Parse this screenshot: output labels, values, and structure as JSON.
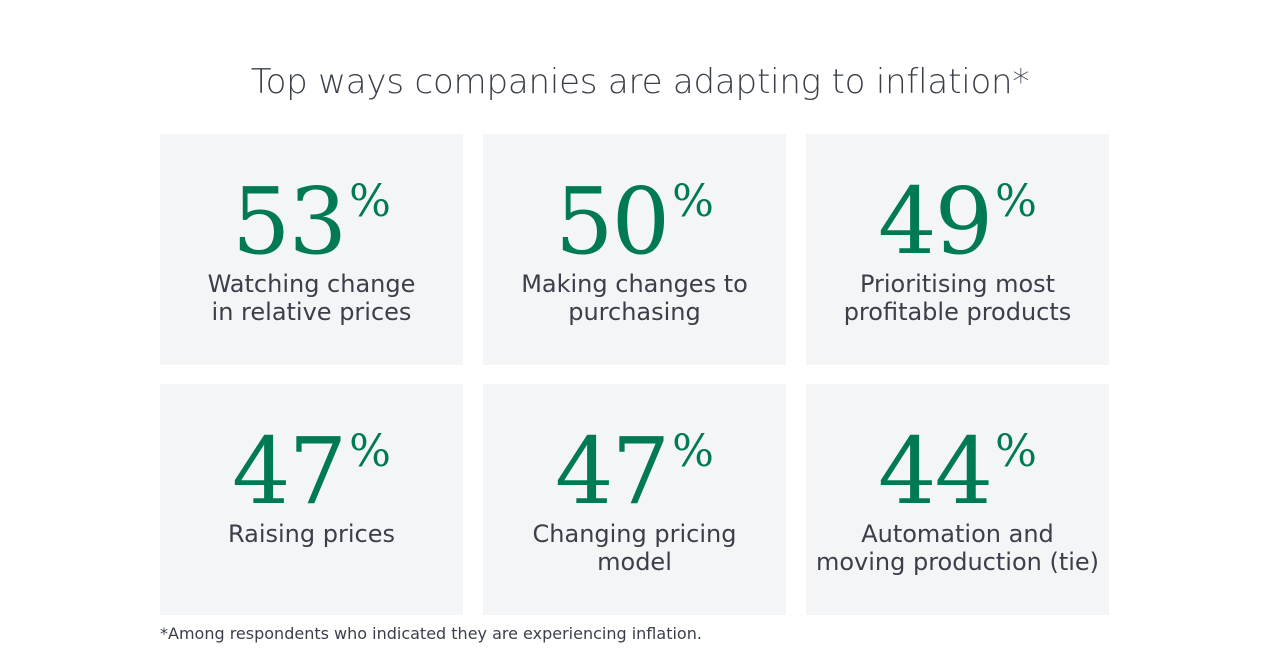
{
  "title": "Top ways companies are adapting to inflation*",
  "colors": {
    "accent_green": "#007a55",
    "card_background": "#f4f5f7",
    "text": "#3a3f4a"
  },
  "stats": [
    {
      "value": "53",
      "unit": "%",
      "label": "Watching change\nin relative prices"
    },
    {
      "value": "50",
      "unit": "%",
      "label": "Making changes to\npurchasing"
    },
    {
      "value": "49",
      "unit": "%",
      "label": "Prioritising most\nprofitable products"
    },
    {
      "value": "47",
      "unit": "%",
      "label": "Raising prices"
    },
    {
      "value": "47",
      "unit": "%",
      "label": "Changing pricing\nmodel"
    },
    {
      "value": "44",
      "unit": "%",
      "label": "Automation and\nmoving production (tie)"
    }
  ],
  "footnote": "*Among respondents who indicated they are experiencing inflation."
}
